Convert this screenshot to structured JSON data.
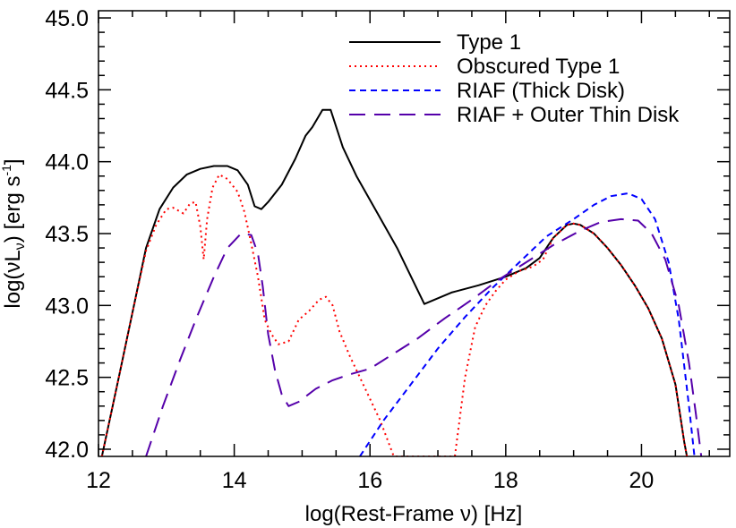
{
  "chart_data": {
    "type": "line",
    "xlabel": "log(Rest-Frame ν) [Hz]",
    "ylabel_parts": [
      "log(νL",
      "ν",
      ") [erg s",
      "-1",
      "]"
    ],
    "xlim": [
      12,
      21.3
    ],
    "ylim": [
      41.95,
      45.05
    ],
    "xticks": [
      12,
      14,
      16,
      18,
      20
    ],
    "xtick_labels": [
      "12",
      "14",
      "16",
      "18",
      "20"
    ],
    "yticks": [
      42.0,
      42.5,
      43.0,
      43.5,
      44.0,
      44.5,
      45.0
    ],
    "ytick_labels": [
      "42.0",
      "42.5",
      "43.0",
      "43.5",
      "44.0",
      "44.5",
      "45.0"
    ],
    "legend_position": "top-right",
    "series": [
      {
        "name": "Type 1",
        "color": "#000000",
        "dash": "solid",
        "points": [
          [
            12.05,
            41.95
          ],
          [
            12.3,
            42.5
          ],
          [
            12.5,
            42.95
          ],
          [
            12.7,
            43.4
          ],
          [
            12.9,
            43.67
          ],
          [
            13.1,
            43.82
          ],
          [
            13.3,
            43.91
          ],
          [
            13.5,
            43.95
          ],
          [
            13.7,
            43.97
          ],
          [
            13.9,
            43.97
          ],
          [
            14.05,
            43.94
          ],
          [
            14.2,
            43.84
          ],
          [
            14.3,
            43.69
          ],
          [
            14.4,
            43.67
          ],
          [
            14.5,
            43.72
          ],
          [
            14.7,
            43.84
          ],
          [
            14.9,
            44.02
          ],
          [
            15.05,
            44.18
          ],
          [
            15.15,
            44.24
          ],
          [
            15.3,
            44.36
          ],
          [
            15.42,
            44.36
          ],
          [
            15.6,
            44.1
          ],
          [
            15.8,
            43.9
          ],
          [
            16.1,
            43.65
          ],
          [
            16.4,
            43.4
          ],
          [
            16.8,
            43.01
          ],
          [
            17.2,
            43.09
          ],
          [
            17.6,
            43.14
          ],
          [
            18.0,
            43.2
          ],
          [
            18.3,
            43.26
          ],
          [
            18.5,
            43.33
          ],
          [
            18.7,
            43.47
          ],
          [
            18.9,
            43.56
          ],
          [
            19.0,
            43.57
          ],
          [
            19.1,
            43.56
          ],
          [
            19.3,
            43.5
          ],
          [
            19.5,
            43.4
          ],
          [
            19.7,
            43.28
          ],
          [
            19.9,
            43.14
          ],
          [
            20.1,
            42.98
          ],
          [
            20.3,
            42.77
          ],
          [
            20.5,
            42.45
          ],
          [
            20.63,
            42.05
          ],
          [
            20.67,
            41.95
          ]
        ]
      },
      {
        "name": "Obscured Type 1",
        "color": "#ff0000",
        "dash": "dotted",
        "points": [
          [
            12.05,
            41.95
          ],
          [
            12.3,
            42.5
          ],
          [
            12.5,
            42.95
          ],
          [
            12.7,
            43.38
          ],
          [
            12.85,
            43.56
          ],
          [
            13.0,
            43.67
          ],
          [
            13.1,
            43.68
          ],
          [
            13.25,
            43.64
          ],
          [
            13.35,
            43.71
          ],
          [
            13.43,
            43.72
          ],
          [
            13.5,
            43.55
          ],
          [
            13.55,
            43.32
          ],
          [
            13.6,
            43.6
          ],
          [
            13.68,
            43.82
          ],
          [
            13.78,
            43.91
          ],
          [
            13.9,
            43.88
          ],
          [
            14.05,
            43.79
          ],
          [
            14.15,
            43.65
          ],
          [
            14.25,
            43.43
          ],
          [
            14.35,
            43.2
          ],
          [
            14.45,
            42.9
          ],
          [
            14.55,
            42.8
          ],
          [
            14.65,
            42.73
          ],
          [
            14.8,
            42.75
          ],
          [
            14.95,
            42.9
          ],
          [
            15.1,
            42.96
          ],
          [
            15.25,
            43.04
          ],
          [
            15.35,
            43.06
          ],
          [
            15.45,
            43.0
          ],
          [
            15.55,
            42.82
          ],
          [
            15.7,
            42.65
          ],
          [
            15.85,
            42.5
          ],
          [
            16.0,
            42.35
          ],
          [
            16.15,
            42.2
          ],
          [
            16.35,
            41.95
          ],
          [
            17.25,
            41.95
          ],
          [
            17.4,
            42.5
          ],
          [
            17.55,
            42.85
          ],
          [
            17.7,
            43.0
          ],
          [
            17.85,
            43.1
          ],
          [
            18.0,
            43.18
          ],
          [
            18.2,
            43.24
          ],
          [
            18.4,
            43.27
          ],
          [
            18.55,
            43.32
          ],
          [
            18.7,
            43.47
          ],
          [
            18.9,
            43.56
          ],
          [
            19.0,
            43.57
          ],
          [
            19.1,
            43.56
          ],
          [
            19.3,
            43.5
          ],
          [
            19.5,
            43.4
          ],
          [
            19.7,
            43.28
          ],
          [
            19.9,
            43.14
          ],
          [
            20.1,
            42.98
          ],
          [
            20.3,
            42.77
          ],
          [
            20.5,
            42.45
          ],
          [
            20.63,
            42.05
          ],
          [
            20.67,
            41.95
          ]
        ]
      },
      {
        "name": "RIAF (Thick Disk)",
        "color": "#0000ff",
        "dash": "short-dash",
        "points": [
          [
            15.85,
            41.95
          ],
          [
            16.2,
            42.2
          ],
          [
            16.6,
            42.45
          ],
          [
            17.0,
            42.7
          ],
          [
            17.4,
            42.92
          ],
          [
            17.8,
            43.12
          ],
          [
            18.2,
            43.3
          ],
          [
            18.6,
            43.48
          ],
          [
            19.0,
            43.6
          ],
          [
            19.3,
            43.7
          ],
          [
            19.55,
            43.76
          ],
          [
            19.8,
            43.78
          ],
          [
            20.0,
            43.74
          ],
          [
            20.2,
            43.6
          ],
          [
            20.4,
            43.3
          ],
          [
            20.55,
            42.9
          ],
          [
            20.7,
            42.3
          ],
          [
            20.78,
            41.95
          ]
        ]
      },
      {
        "name": "RIAF + Outer Thin Disk",
        "color": "#5500aa",
        "dash": "long-dash",
        "points": [
          [
            12.7,
            41.95
          ],
          [
            12.95,
            42.3
          ],
          [
            13.2,
            42.62
          ],
          [
            13.45,
            42.92
          ],
          [
            13.7,
            43.2
          ],
          [
            13.9,
            43.4
          ],
          [
            14.1,
            43.5
          ],
          [
            14.25,
            43.49
          ],
          [
            14.35,
            43.36
          ],
          [
            14.42,
            43.13
          ],
          [
            14.5,
            42.8
          ],
          [
            14.6,
            42.55
          ],
          [
            14.7,
            42.38
          ],
          [
            14.8,
            42.3
          ],
          [
            14.95,
            42.33
          ],
          [
            15.2,
            42.42
          ],
          [
            15.45,
            42.48
          ],
          [
            15.7,
            42.52
          ],
          [
            16.0,
            42.56
          ],
          [
            16.3,
            42.65
          ],
          [
            16.7,
            42.77
          ],
          [
            17.1,
            42.91
          ],
          [
            17.5,
            43.04
          ],
          [
            17.9,
            43.18
          ],
          [
            18.3,
            43.3
          ],
          [
            18.7,
            43.42
          ],
          [
            19.1,
            43.52
          ],
          [
            19.4,
            43.58
          ],
          [
            19.7,
            43.6
          ],
          [
            19.95,
            43.59
          ],
          [
            20.15,
            43.5
          ],
          [
            20.35,
            43.32
          ],
          [
            20.55,
            43.0
          ],
          [
            20.7,
            42.6
          ],
          [
            20.8,
            42.25
          ],
          [
            20.88,
            41.95
          ]
        ]
      }
    ]
  }
}
